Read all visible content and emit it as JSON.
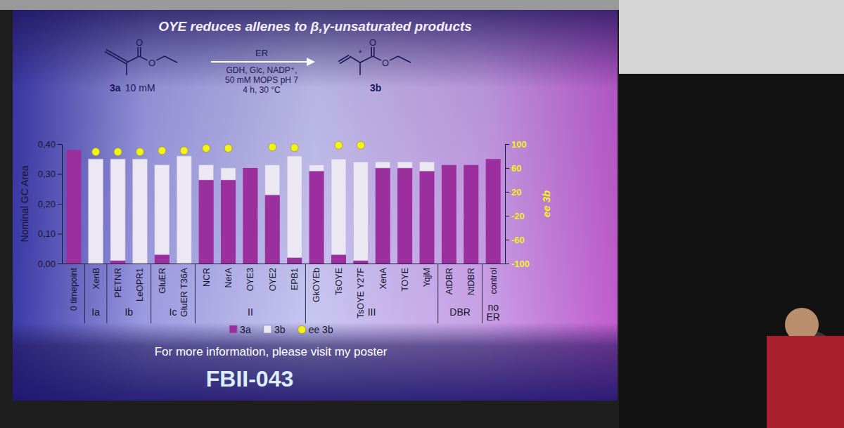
{
  "chart_data": {
    "type": "bar",
    "stacked": true,
    "title": "OYE reduces allenes to β,γ-unsaturated products",
    "categories": [
      "0 timepoint",
      "XenB",
      "PETNR",
      "LeOPR1",
      "GluER",
      "GluER T36A",
      "NCR",
      "NerA",
      "OYE3",
      "OYE2",
      "EPB1",
      "GkOYEb",
      "TsOYE",
      "TsOYE Y27F",
      "XenA",
      "TOYE",
      "YqjM",
      "AtDBR",
      "NtDBR",
      "control"
    ],
    "groups": [
      null,
      "Ia",
      "Ib",
      "Ib",
      "Ic",
      "Ic",
      "II",
      "II",
      "II",
      "II",
      "II",
      "III",
      "III",
      "III",
      "III",
      "III",
      "III",
      "DBR",
      "DBR",
      "no ER"
    ],
    "series": [
      {
        "name": "3a",
        "color": "#9b2f9e",
        "values": [
          0.38,
          0,
          0.01,
          0,
          0.03,
          0,
          0.28,
          0.28,
          0.32,
          0.23,
          0.02,
          0.31,
          0.03,
          0.01,
          0.32,
          0.32,
          0.31,
          0.33,
          0.33,
          0.35
        ]
      },
      {
        "name": "3b",
        "color": "#ebe7f3",
        "values": [
          0,
          0.35,
          0.34,
          0.35,
          0.3,
          0.36,
          0.05,
          0.04,
          0,
          0.1,
          0.34,
          0.02,
          0.32,
          0.33,
          0.02,
          0.02,
          0.03,
          0,
          0,
          0
        ]
      },
      {
        "name": "ee 3b",
        "type": "scatter",
        "axis": "y2",
        "marker": "circle",
        "color": "#f2f21c",
        "values": [
          null,
          87,
          87,
          87,
          89,
          89,
          93,
          93,
          null,
          95,
          94,
          null,
          98,
          98,
          null,
          null,
          null,
          null,
          null,
          null
        ]
      }
    ],
    "y_label": "Nominal GC Area",
    "y2_label": "ee 3b",
    "ylim": [
      0,
      0.4
    ],
    "yticks": [
      {
        "value": 0,
        "label": "0,00"
      },
      {
        "value": 0.1,
        "label": "0,10"
      },
      {
        "value": 0.2,
        "label": "0,20"
      },
      {
        "value": 0.3,
        "label": "0,30"
      },
      {
        "value": 0.4,
        "label": "0,40"
      }
    ],
    "y2lim": [
      -100,
      100
    ],
    "y2ticks": [
      -100,
      -60,
      -20,
      20,
      60,
      100
    ],
    "legend": "bottom"
  },
  "slide": {
    "scheme": {
      "reactant_atoms": [
        "O",
        "O"
      ],
      "reactant_label": "3a",
      "reactant_concentration": "10 mM",
      "arrow_above": "ER",
      "arrow_below": [
        "GDH, Glc, NADP⁺,",
        "50 mM MOPS pH 7",
        "4 h, 30 °C"
      ],
      "product_atoms": [
        "O",
        "O"
      ],
      "stereocenter": "*",
      "product_label": "3b"
    },
    "footer": "For more information, please visit my poster",
    "poster_code": "FBII-043"
  }
}
